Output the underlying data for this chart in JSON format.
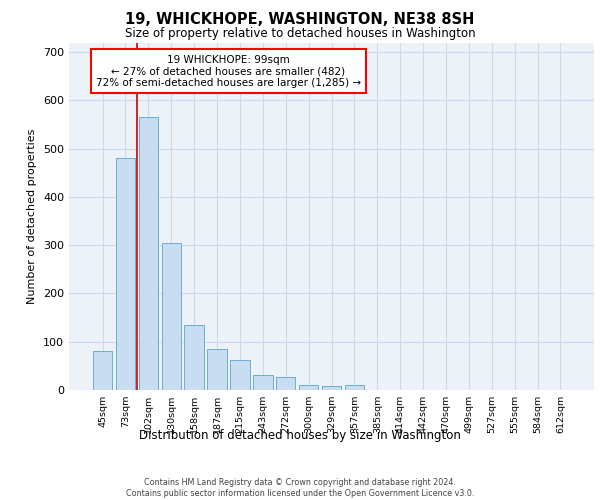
{
  "title": "19, WHICKHOPE, WASHINGTON, NE38 8SH",
  "subtitle": "Size of property relative to detached houses in Washington",
  "xlabel": "Distribution of detached houses by size in Washington",
  "ylabel": "Number of detached properties",
  "footer_line1": "Contains HM Land Registry data © Crown copyright and database right 2024.",
  "footer_line2": "Contains public sector information licensed under the Open Government Licence v3.0.",
  "annotation_line1": "19 WHICKHOPE: 99sqm",
  "annotation_line2": "← 27% of detached houses are smaller (482)",
  "annotation_line3": "72% of semi-detached houses are larger (1,285) →",
  "bar_color": "#c9ddf2",
  "bar_edge_color": "#6baed6",
  "vline_color": "#cc0000",
  "grid_color": "#cdd8ea",
  "background_color": "#edf1f8",
  "categories": [
    "45sqm",
    "73sqm",
    "102sqm",
    "130sqm",
    "158sqm",
    "187sqm",
    "215sqm",
    "243sqm",
    "272sqm",
    "300sqm",
    "329sqm",
    "357sqm",
    "385sqm",
    "414sqm",
    "442sqm",
    "470sqm",
    "499sqm",
    "527sqm",
    "555sqm",
    "584sqm",
    "612sqm"
  ],
  "values": [
    80,
    480,
    565,
    305,
    135,
    85,
    63,
    32,
    27,
    10,
    8,
    10,
    0,
    0,
    0,
    0,
    0,
    0,
    0,
    0,
    0
  ],
  "ylim": [
    0,
    720
  ],
  "yticks": [
    0,
    100,
    200,
    300,
    400,
    500,
    600,
    700
  ],
  "vline_x_index": 1.5
}
